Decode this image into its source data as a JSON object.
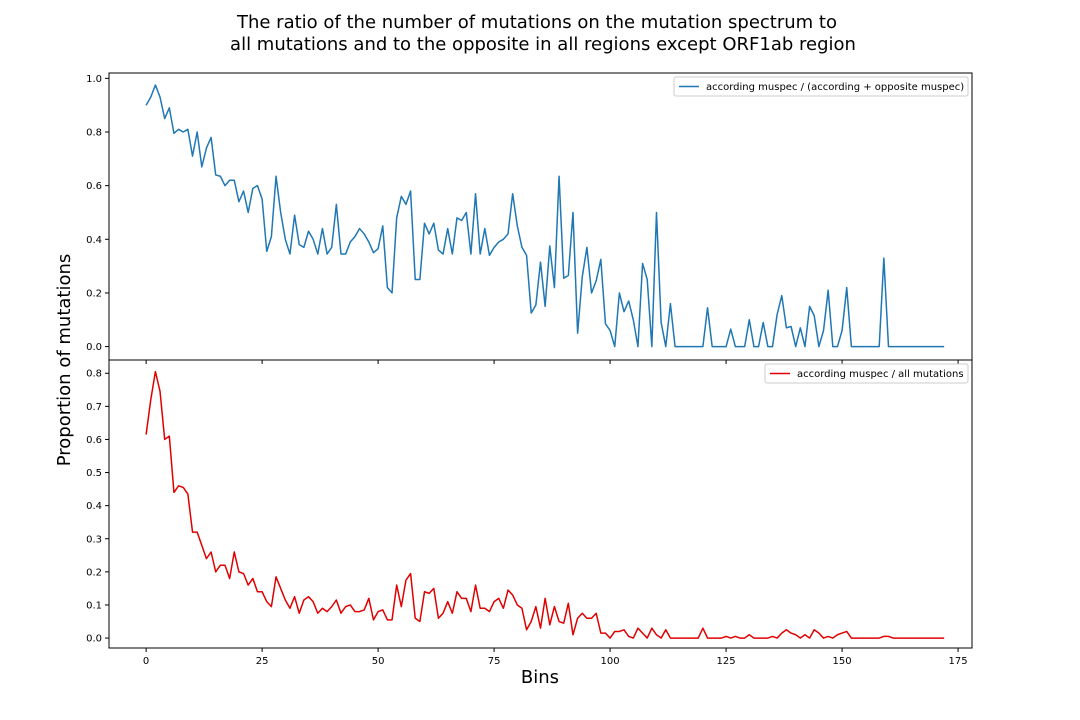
{
  "title": {
    "line1": "The ratio of the number of mutations on the mutation spectrum to",
    "line2": "all mutations and to the opposite in all regions except ORF1ab region"
  },
  "xlabel": "Bins",
  "ylabel": "Proportion of mutations",
  "colors": {
    "series_top": "#1f77b4",
    "series_bottom": "#e00000"
  },
  "chart_data": [
    {
      "type": "line",
      "xlim": [
        -8,
        178
      ],
      "ylim": [
        -0.05,
        1.02
      ],
      "x_ticks": [
        0,
        25,
        50,
        75,
        100,
        125,
        150,
        175
      ],
      "y_ticks": [
        0.0,
        0.2,
        0.4,
        0.6,
        0.8,
        1.0
      ],
      "y_tick_labels": [
        "0.0",
        "0.2",
        "0.4",
        "0.6",
        "0.8",
        "1.0"
      ],
      "legend_position": "top-right",
      "series": [
        {
          "name": "according muspec / (according + opposite muspec)",
          "values": [
            0.9,
            0.93,
            0.975,
            0.93,
            0.85,
            0.89,
            0.795,
            0.81,
            0.8,
            0.81,
            0.71,
            0.8,
            0.67,
            0.74,
            0.78,
            0.64,
            0.635,
            0.6,
            0.62,
            0.62,
            0.54,
            0.58,
            0.5,
            0.59,
            0.6,
            0.55,
            0.355,
            0.41,
            0.635,
            0.5,
            0.4,
            0.345,
            0.49,
            0.38,
            0.37,
            0.43,
            0.4,
            0.345,
            0.44,
            0.345,
            0.37,
            0.53,
            0.345,
            0.345,
            0.39,
            0.41,
            0.44,
            0.42,
            0.39,
            0.35,
            0.365,
            0.45,
            0.22,
            0.2,
            0.48,
            0.56,
            0.53,
            0.58,
            0.25,
            0.25,
            0.46,
            0.42,
            0.46,
            0.36,
            0.345,
            0.44,
            0.345,
            0.48,
            0.47,
            0.5,
            0.345,
            0.57,
            0.345,
            0.44,
            0.34,
            0.37,
            0.39,
            0.4,
            0.42,
            0.57,
            0.45,
            0.37,
            0.34,
            0.125,
            0.155,
            0.315,
            0.15,
            0.375,
            0.22,
            0.635,
            0.255,
            0.265,
            0.5,
            0.05,
            0.26,
            0.37,
            0.2,
            0.245,
            0.325,
            0.085,
            0.06,
            0.0,
            0.2,
            0.13,
            0.17,
            0.1,
            0.0,
            0.31,
            0.25,
            0.0,
            0.5,
            0.09,
            0.0,
            0.16,
            0.0,
            0.0,
            0.0,
            0.0,
            0.0,
            0.0,
            0.0,
            0.145,
            0.0,
            0.0,
            0.0,
            0.0,
            0.065,
            0.0,
            0.0,
            0.0,
            0.1,
            0.0,
            0.0,
            0.09,
            0.0,
            0.0,
            0.12,
            0.19,
            0.07,
            0.075,
            0.0,
            0.07,
            0.0,
            0.15,
            0.115,
            0.0,
            0.06,
            0.21,
            0.0,
            0.0,
            0.06,
            0.22,
            0.0,
            0.0,
            0.0,
            0.0,
            0.0,
            0.0,
            0.0,
            0.33,
            0.0,
            0.0,
            0.0,
            0.0,
            0.0,
            0.0,
            0.0,
            0.0,
            0.0,
            0.0,
            0.0,
            0.0,
            0.0
          ]
        }
      ]
    },
    {
      "type": "line",
      "xlim": [
        -8,
        178
      ],
      "ylim": [
        -0.03,
        0.84
      ],
      "x_ticks": [
        0,
        25,
        50,
        75,
        100,
        125,
        150,
        175
      ],
      "x_tick_labels": [
        "0",
        "25",
        "50",
        "75",
        "100",
        "125",
        "150",
        "175"
      ],
      "y_ticks": [
        0.0,
        0.1,
        0.2,
        0.3,
        0.4,
        0.5,
        0.6,
        0.7,
        0.8
      ],
      "y_tick_labels": [
        "0.0",
        "0.1",
        "0.2",
        "0.3",
        "0.4",
        "0.5",
        "0.6",
        "0.7",
        "0.8"
      ],
      "legend_position": "top-right",
      "series": [
        {
          "name": "according muspec / all mutations",
          "values": [
            0.615,
            0.72,
            0.805,
            0.745,
            0.6,
            0.61,
            0.44,
            0.46,
            0.455,
            0.435,
            0.32,
            0.32,
            0.28,
            0.24,
            0.26,
            0.2,
            0.22,
            0.22,
            0.18,
            0.26,
            0.2,
            0.195,
            0.16,
            0.18,
            0.14,
            0.14,
            0.11,
            0.095,
            0.185,
            0.15,
            0.115,
            0.09,
            0.125,
            0.075,
            0.115,
            0.125,
            0.11,
            0.075,
            0.09,
            0.08,
            0.095,
            0.115,
            0.075,
            0.095,
            0.1,
            0.08,
            0.08,
            0.085,
            0.12,
            0.055,
            0.08,
            0.085,
            0.055,
            0.055,
            0.16,
            0.095,
            0.175,
            0.195,
            0.06,
            0.05,
            0.14,
            0.135,
            0.15,
            0.06,
            0.075,
            0.11,
            0.075,
            0.14,
            0.12,
            0.12,
            0.08,
            0.16,
            0.09,
            0.09,
            0.08,
            0.11,
            0.12,
            0.09,
            0.145,
            0.13,
            0.1,
            0.09,
            0.025,
            0.05,
            0.095,
            0.03,
            0.12,
            0.04,
            0.095,
            0.05,
            0.045,
            0.105,
            0.01,
            0.06,
            0.075,
            0.06,
            0.06,
            0.075,
            0.015,
            0.015,
            0.0,
            0.02,
            0.02,
            0.025,
            0.005,
            0.0,
            0.03,
            0.015,
            0.0,
            0.03,
            0.01,
            0.0,
            0.025,
            0.0,
            0.0,
            0.0,
            0.0,
            0.0,
            0.0,
            0.0,
            0.03,
            0.0,
            0.0,
            0.0,
            0.0,
            0.005,
            0.0,
            0.005,
            0.0,
            0.0,
            0.01,
            0.0,
            0.0,
            0.0,
            0.0,
            0.005,
            0.0,
            0.015,
            0.025,
            0.015,
            0.01,
            0.0,
            0.01,
            0.0,
            0.025,
            0.015,
            0.0,
            0.005,
            0.0,
            0.01,
            0.015,
            0.02,
            0.0,
            0.0,
            0.0,
            0.0,
            0.0,
            0.0,
            0.0,
            0.005,
            0.005,
            0.0,
            0.0,
            0.0,
            0.0,
            0.0,
            0.0,
            0.0,
            0.0,
            0.0,
            0.0,
            0.0,
            0.0
          ]
        }
      ]
    }
  ]
}
